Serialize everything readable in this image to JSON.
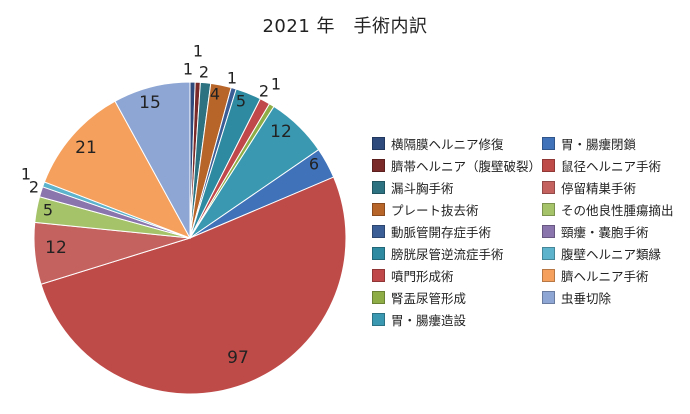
{
  "chart_data": {
    "type": "pie",
    "title": "2021 年　手術内訳",
    "legend_placement": "right",
    "slices": [
      {
        "label": "横隔膜ヘルニア修復",
        "value": 1,
        "color": "#2e4a7c"
      },
      {
        "label": "臍帯ヘルニア（腹壁破裂）",
        "value": 1,
        "color": "#7a2a28"
      },
      {
        "label": "漏斗胸手術",
        "value": 2,
        "color": "#2c7281"
      },
      {
        "label": "プレート抜去術",
        "value": 4,
        "color": "#b8652a"
      },
      {
        "label": "動脈管開存症手術",
        "value": 1,
        "color": "#3b5e96"
      },
      {
        "label": "膀胱尿管逆流症手術",
        "value": 5,
        "color": "#2d8aa0"
      },
      {
        "label": "噴門形成術",
        "value": 2,
        "color": "#c0484a"
      },
      {
        "label": "腎盂尿管形成",
        "value": 1,
        "color": "#8fad46"
      },
      {
        "label": "胃・腸瘻造設",
        "value": 12,
        "color": "#3a99b1"
      },
      {
        "label": "胃・腸瘻閉鎖",
        "value": 6,
        "color": "#3f72b8"
      },
      {
        "label": "鼠径ヘルニア手術",
        "value": 97,
        "color": "#bf4b49"
      },
      {
        "label": "停留精巣手術",
        "value": 12,
        "color": "#c4625f"
      },
      {
        "label": "その他良性腫瘍摘出",
        "value": 5,
        "color": "#a5c46a"
      },
      {
        "label": "頸瘻・嚢胞手術",
        "value": 2,
        "color": "#8b75ad"
      },
      {
        "label": "腹壁ヘルニア類縁",
        "value": 1,
        "color": "#5cb3cb"
      },
      {
        "label": "臍ヘルニア手術",
        "value": 21,
        "color": "#f5a05d"
      },
      {
        "label": "虫垂切除",
        "value": 15,
        "color": "#8ea6d4"
      }
    ]
  },
  "legend": {
    "left_column": [
      "横隔膜ヘルニア修復",
      "臍帯ヘルニア（腹壁破裂）",
      "漏斗胸手術",
      "プレート抜去術",
      "動脈管開存症手術",
      "膀胱尿管逆流症手術",
      "噴門形成術",
      "腎盂尿管形成",
      "胃・腸瘻造設"
    ],
    "right_column": [
      "胃・腸瘻閉鎖",
      "鼠径ヘルニア手術",
      "停留精巣手術",
      "その他良性腫瘍摘出",
      "頸瘻・嚢胞手術",
      "腹壁ヘルニア類縁",
      "臍ヘルニア手術",
      "虫垂切除"
    ]
  }
}
